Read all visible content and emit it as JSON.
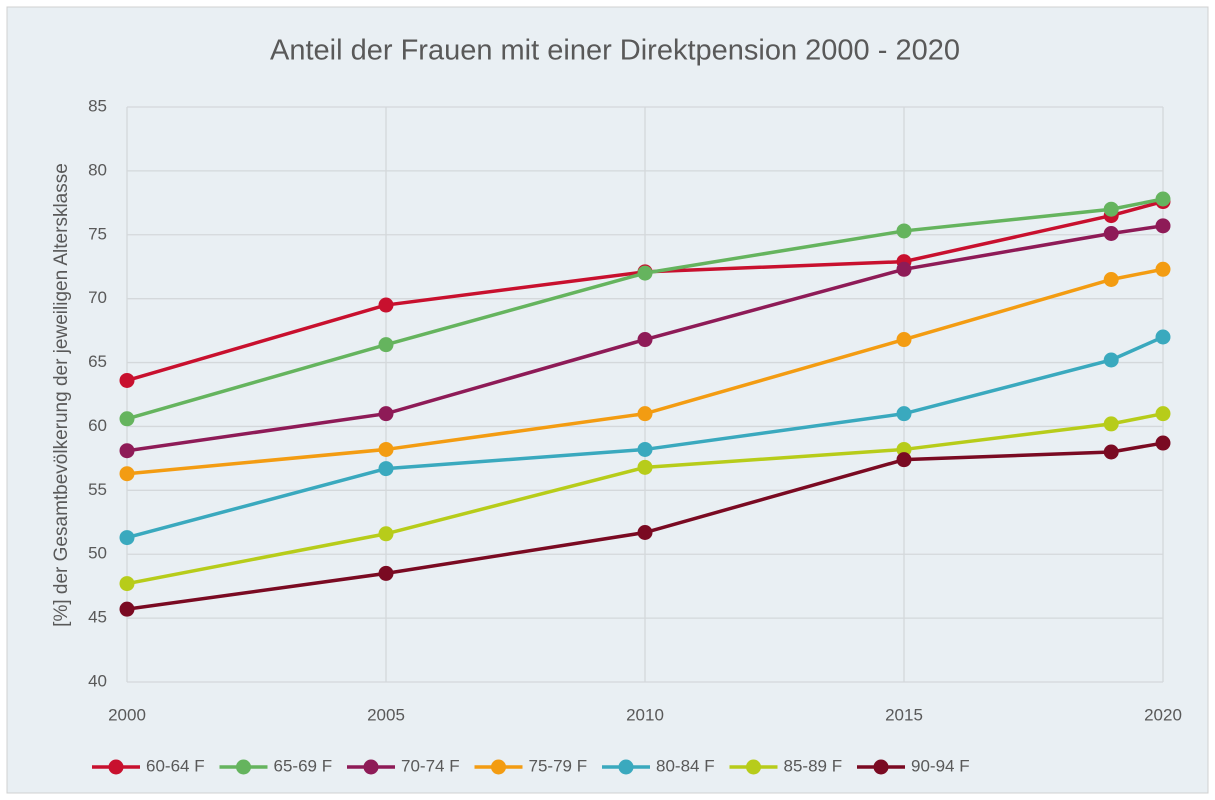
{
  "chart_data": {
    "type": "line",
    "title": "Anteil der Frauen mit einer Direktpension 2000 - 2020",
    "ylabel": "[%] der Gesamtbevölkerung der jeweiligen Altersklasse",
    "x": [
      2000,
      2005,
      2010,
      2015,
      2019,
      2020
    ],
    "xlim": [
      2000,
      2020
    ],
    "xticks": [
      2000,
      2005,
      2010,
      2015,
      2020
    ],
    "ylim": [
      40,
      85
    ],
    "yticks": [
      40,
      45,
      50,
      55,
      60,
      65,
      70,
      75,
      80,
      85
    ],
    "grid": true,
    "legend": "bottom",
    "series": [
      {
        "name": "60-64 F",
        "color": "#c8102e",
        "values": [
          63.6,
          69.5,
          72.1,
          72.9,
          76.5,
          77.6
        ]
      },
      {
        "name": "65-69 F",
        "color": "#65b45e",
        "values": [
          60.6,
          66.4,
          72.0,
          75.3,
          77.0,
          77.8
        ]
      },
      {
        "name": "70-74 F",
        "color": "#8e1b57",
        "values": [
          58.1,
          61.0,
          66.8,
          72.3,
          75.1,
          75.7
        ]
      },
      {
        "name": "75-79 F",
        "color": "#f39c12",
        "values": [
          56.3,
          58.2,
          61.0,
          66.8,
          71.5,
          72.3
        ]
      },
      {
        "name": "80-84 F",
        "color": "#3aa9be",
        "values": [
          51.3,
          56.7,
          58.2,
          61.0,
          65.2,
          67.0
        ]
      },
      {
        "name": "85-89 F",
        "color": "#b7cc1a",
        "values": [
          47.7,
          51.6,
          56.8,
          58.2,
          60.2,
          61.0
        ]
      },
      {
        "name": "90-94 F",
        "color": "#7a0a22",
        "values": [
          45.7,
          48.5,
          51.7,
          57.4,
          58.0,
          58.7
        ]
      }
    ]
  }
}
